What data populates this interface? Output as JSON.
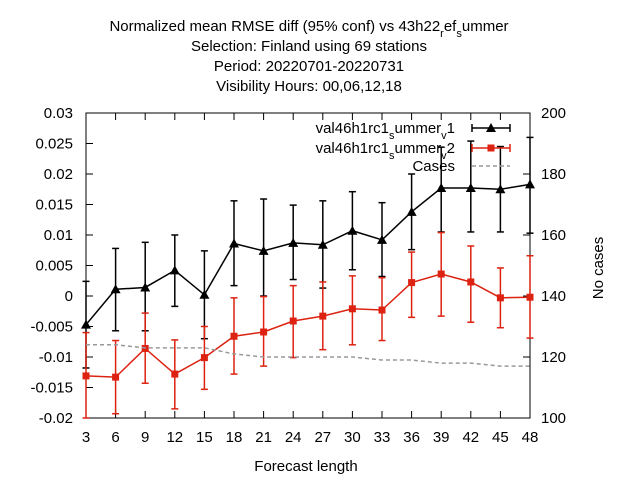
{
  "chart_data": {
    "type": "line",
    "title_lines": [
      "Normalized mean RMSE diff (95% conf) vs 43h22_ref_summer",
      "Selection: Finland using    69 stations",
      "Period: 20220701-20220731",
      "Visibility   Hours: 00,06,12,18"
    ],
    "xlabel": "Forecast length",
    "ylabel": "",
    "y2label": "No cases",
    "x": [
      3,
      6,
      9,
      12,
      15,
      18,
      21,
      24,
      27,
      30,
      33,
      36,
      39,
      42,
      45,
      48
    ],
    "xlim": [
      3,
      48
    ],
    "ylim": [
      -0.02,
      0.03
    ],
    "y2lim": [
      100,
      200
    ],
    "x_ticks": [
      "3",
      "6",
      "9",
      "12",
      "15",
      "18",
      "21",
      "24",
      "27",
      "30",
      "33",
      "36",
      "39",
      "42",
      "45",
      "48"
    ],
    "y_ticks": [
      "-0.02",
      "-0.015",
      "-0.01",
      "-0.005",
      "0",
      "0.005",
      "0.01",
      "0.015",
      "0.02",
      "0.025",
      "0.03"
    ],
    "y2_ticks": [
      "100",
      "120",
      "140",
      "160",
      "180",
      "200"
    ],
    "legend_position": "top-right",
    "series": [
      {
        "name": "val46h1rc1_summer_v1",
        "color": "#000000",
        "marker": "triangle",
        "values": [
          -0.0047,
          0.0011,
          0.0014,
          0.0042,
          0.0002,
          0.0086,
          0.0074,
          0.0087,
          0.0084,
          0.0107,
          0.0092,
          0.0138,
          0.0177,
          0.0177,
          0.0175,
          0.0183
        ],
        "lower": [
          -0.0118,
          -0.0057,
          -0.0057,
          -0.0017,
          -0.007,
          0.0017,
          0.0,
          0.0027,
          0.0013,
          0.0043,
          0.0032,
          0.0076,
          0.0105,
          0.0105,
          0.0105,
          0.0103
        ],
        "upper": [
          0.0024,
          0.0078,
          0.0088,
          0.01,
          0.0074,
          0.0156,
          0.0159,
          0.0149,
          0.0156,
          0.0171,
          0.0153,
          0.02,
          0.0244,
          0.0254,
          0.0245,
          0.026
        ]
      },
      {
        "name": "val46h1rc1_summer_v2",
        "color": "#dd2211",
        "marker": "square",
        "values": [
          -0.0131,
          -0.0133,
          -0.0086,
          -0.0128,
          -0.0101,
          -0.0066,
          -0.0059,
          -0.0041,
          -0.0033,
          -0.0021,
          -0.0023,
          0.0022,
          0.0036,
          0.0023,
          -0.0003,
          -0.0002
        ],
        "lower": [
          -0.02,
          -0.0193,
          -0.0143,
          -0.0185,
          -0.0153,
          -0.0128,
          -0.0115,
          -0.0101,
          -0.0088,
          -0.008,
          -0.0073,
          -0.0035,
          -0.0033,
          -0.0043,
          -0.0052,
          -0.0069
        ],
        "upper": [
          -0.006,
          -0.0073,
          -0.0028,
          -0.0072,
          -0.005,
          -0.0003,
          -0.0001,
          0.0017,
          0.0023,
          0.0033,
          0.003,
          0.0072,
          0.0104,
          0.0082,
          0.0046,
          0.0066
        ]
      },
      {
        "name": "Cases",
        "color": "#999999",
        "dashed": true,
        "axis": "y2",
        "values": [
          124,
          124,
          123,
          123,
          123,
          121,
          120,
          120,
          120,
          120,
          119,
          119,
          118,
          118,
          117,
          117
        ]
      }
    ]
  }
}
